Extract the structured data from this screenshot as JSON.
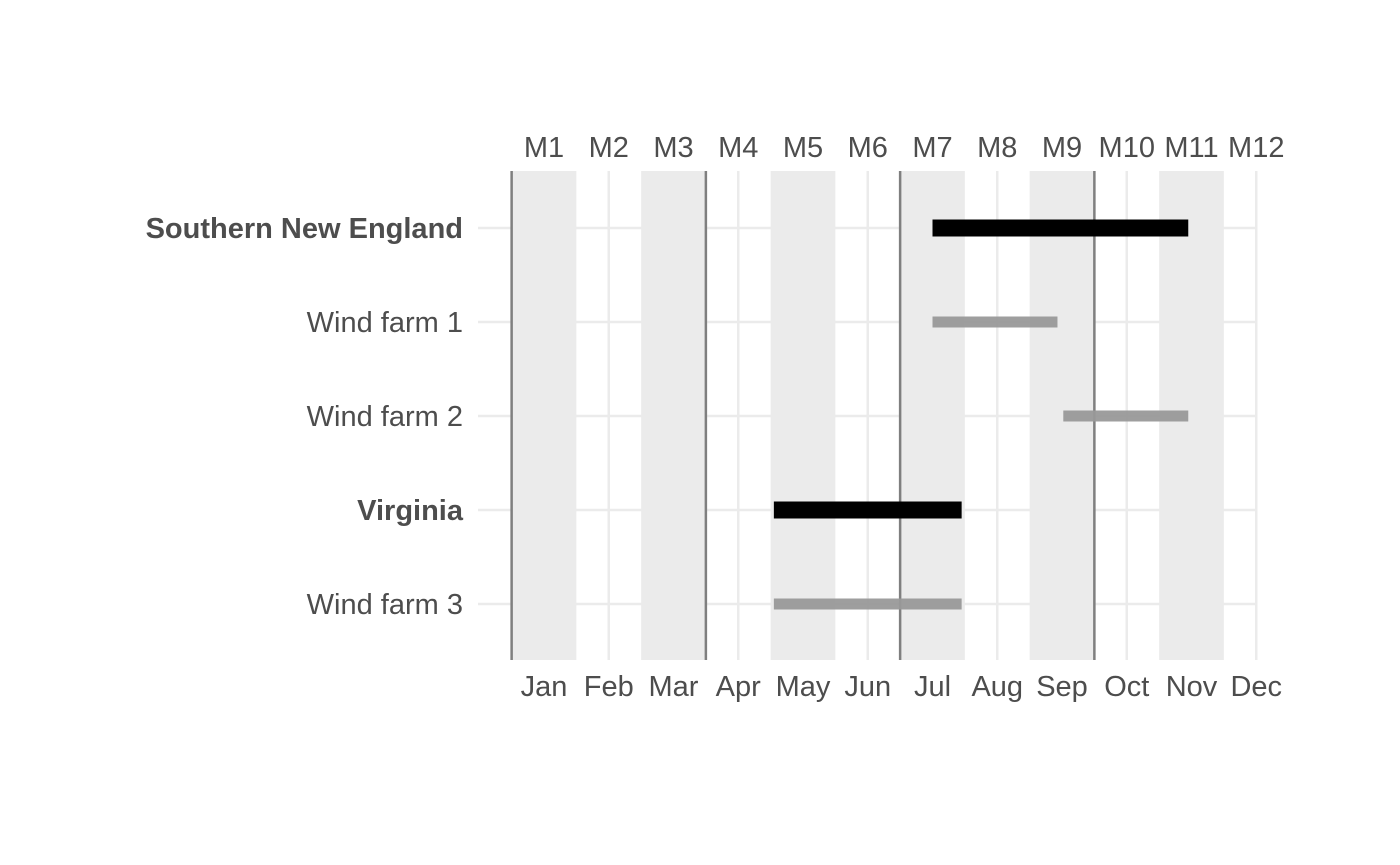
{
  "chart_data": {
    "type": "gantt",
    "title": "",
    "xlabel": "",
    "ylabel": "",
    "x_axis_bottom": {
      "ticks": [
        "Jan",
        "Feb",
        "Mar",
        "Apr",
        "May",
        "Jun",
        "Jul",
        "Aug",
        "Sep",
        "Oct",
        "Nov",
        "Dec"
      ]
    },
    "x_axis_top": {
      "ticks": [
        "M1",
        "M2",
        "M3",
        "M4",
        "M5",
        "M6",
        "M7",
        "M8",
        "M9",
        "M10",
        "M11",
        "M12"
      ]
    },
    "xlim": [
      0.5,
      12.0
    ],
    "grid": true,
    "shaded_bands": [
      {
        "start": 0.5,
        "end": 1.5
      },
      {
        "start": 2.5,
        "end": 3.5
      },
      {
        "start": 4.5,
        "end": 5.5
      },
      {
        "start": 6.5,
        "end": 7.5
      },
      {
        "start": 8.5,
        "end": 9.5
      },
      {
        "start": 10.5,
        "end": 11.5
      }
    ],
    "vertical_lines": [
      0.5,
      3.5,
      6.5,
      9.5
    ],
    "rows": [
      {
        "label": "Southern New England",
        "bold": true,
        "start": 7.0,
        "end": 10.95,
        "style": "group"
      },
      {
        "label": "Wind farm 1",
        "bold": false,
        "start": 7.0,
        "end": 8.93,
        "style": "item"
      },
      {
        "label": "Wind farm 2",
        "bold": false,
        "start": 9.02,
        "end": 10.95,
        "style": "item"
      },
      {
        "label": "Virginia",
        "bold": true,
        "start": 4.55,
        "end": 7.45,
        "style": "group"
      },
      {
        "label": "Wind farm 3",
        "bold": false,
        "start": 4.55,
        "end": 7.45,
        "style": "item"
      }
    ],
    "colors": {
      "group_bar": "#000000",
      "item_bar": "#999999",
      "band": "#ebebeb",
      "grid": "#ebebeb",
      "vline": "#7f7f7f",
      "text": "#4d4d4d"
    }
  }
}
